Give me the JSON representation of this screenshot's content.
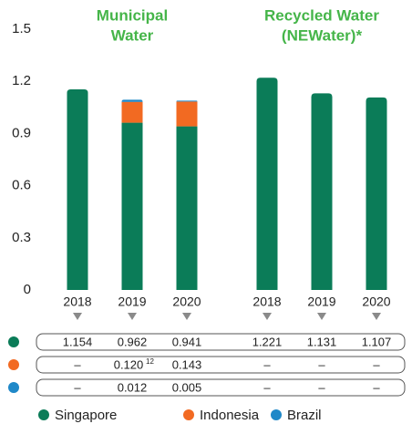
{
  "chart_data": {
    "type": "bar",
    "stacked": true,
    "groups": [
      {
        "title_lines": [
          "Municipal",
          "Water"
        ],
        "categories": [
          "2018",
          "2019",
          "2020"
        ]
      },
      {
        "title_lines": [
          "Recycled Water",
          "(NEWater)*"
        ],
        "categories": [
          "2018",
          "2019",
          "2020"
        ]
      }
    ],
    "ylim": [
      0,
      1.5
    ],
    "yticks": [
      0,
      0.3,
      0.6,
      0.9,
      1.2,
      1.5
    ],
    "grid": false,
    "series": [
      {
        "name": "Singapore",
        "color": "#0b7c58",
        "values": [
          1.154,
          0.962,
          0.941,
          1.221,
          1.131,
          1.107
        ],
        "value_labels": [
          "1.154",
          "0.962",
          "0.941",
          "1.221",
          "1.131",
          "1.107"
        ]
      },
      {
        "name": "Indonesia",
        "color": "#f26a22",
        "values": [
          null,
          0.12,
          0.143,
          null,
          null,
          null
        ],
        "value_labels": [
          "–",
          "0.120",
          "0.143",
          "–",
          "–",
          "–"
        ],
        "value_superscripts": [
          null,
          "12",
          null,
          null,
          null,
          null
        ]
      },
      {
        "name": "Brazil",
        "color": "#1f88c8",
        "values": [
          null,
          0.012,
          0.005,
          null,
          null,
          null
        ],
        "value_labels": [
          "–",
          "0.012",
          "0.005",
          "–",
          "–",
          "–"
        ]
      }
    ]
  }
}
